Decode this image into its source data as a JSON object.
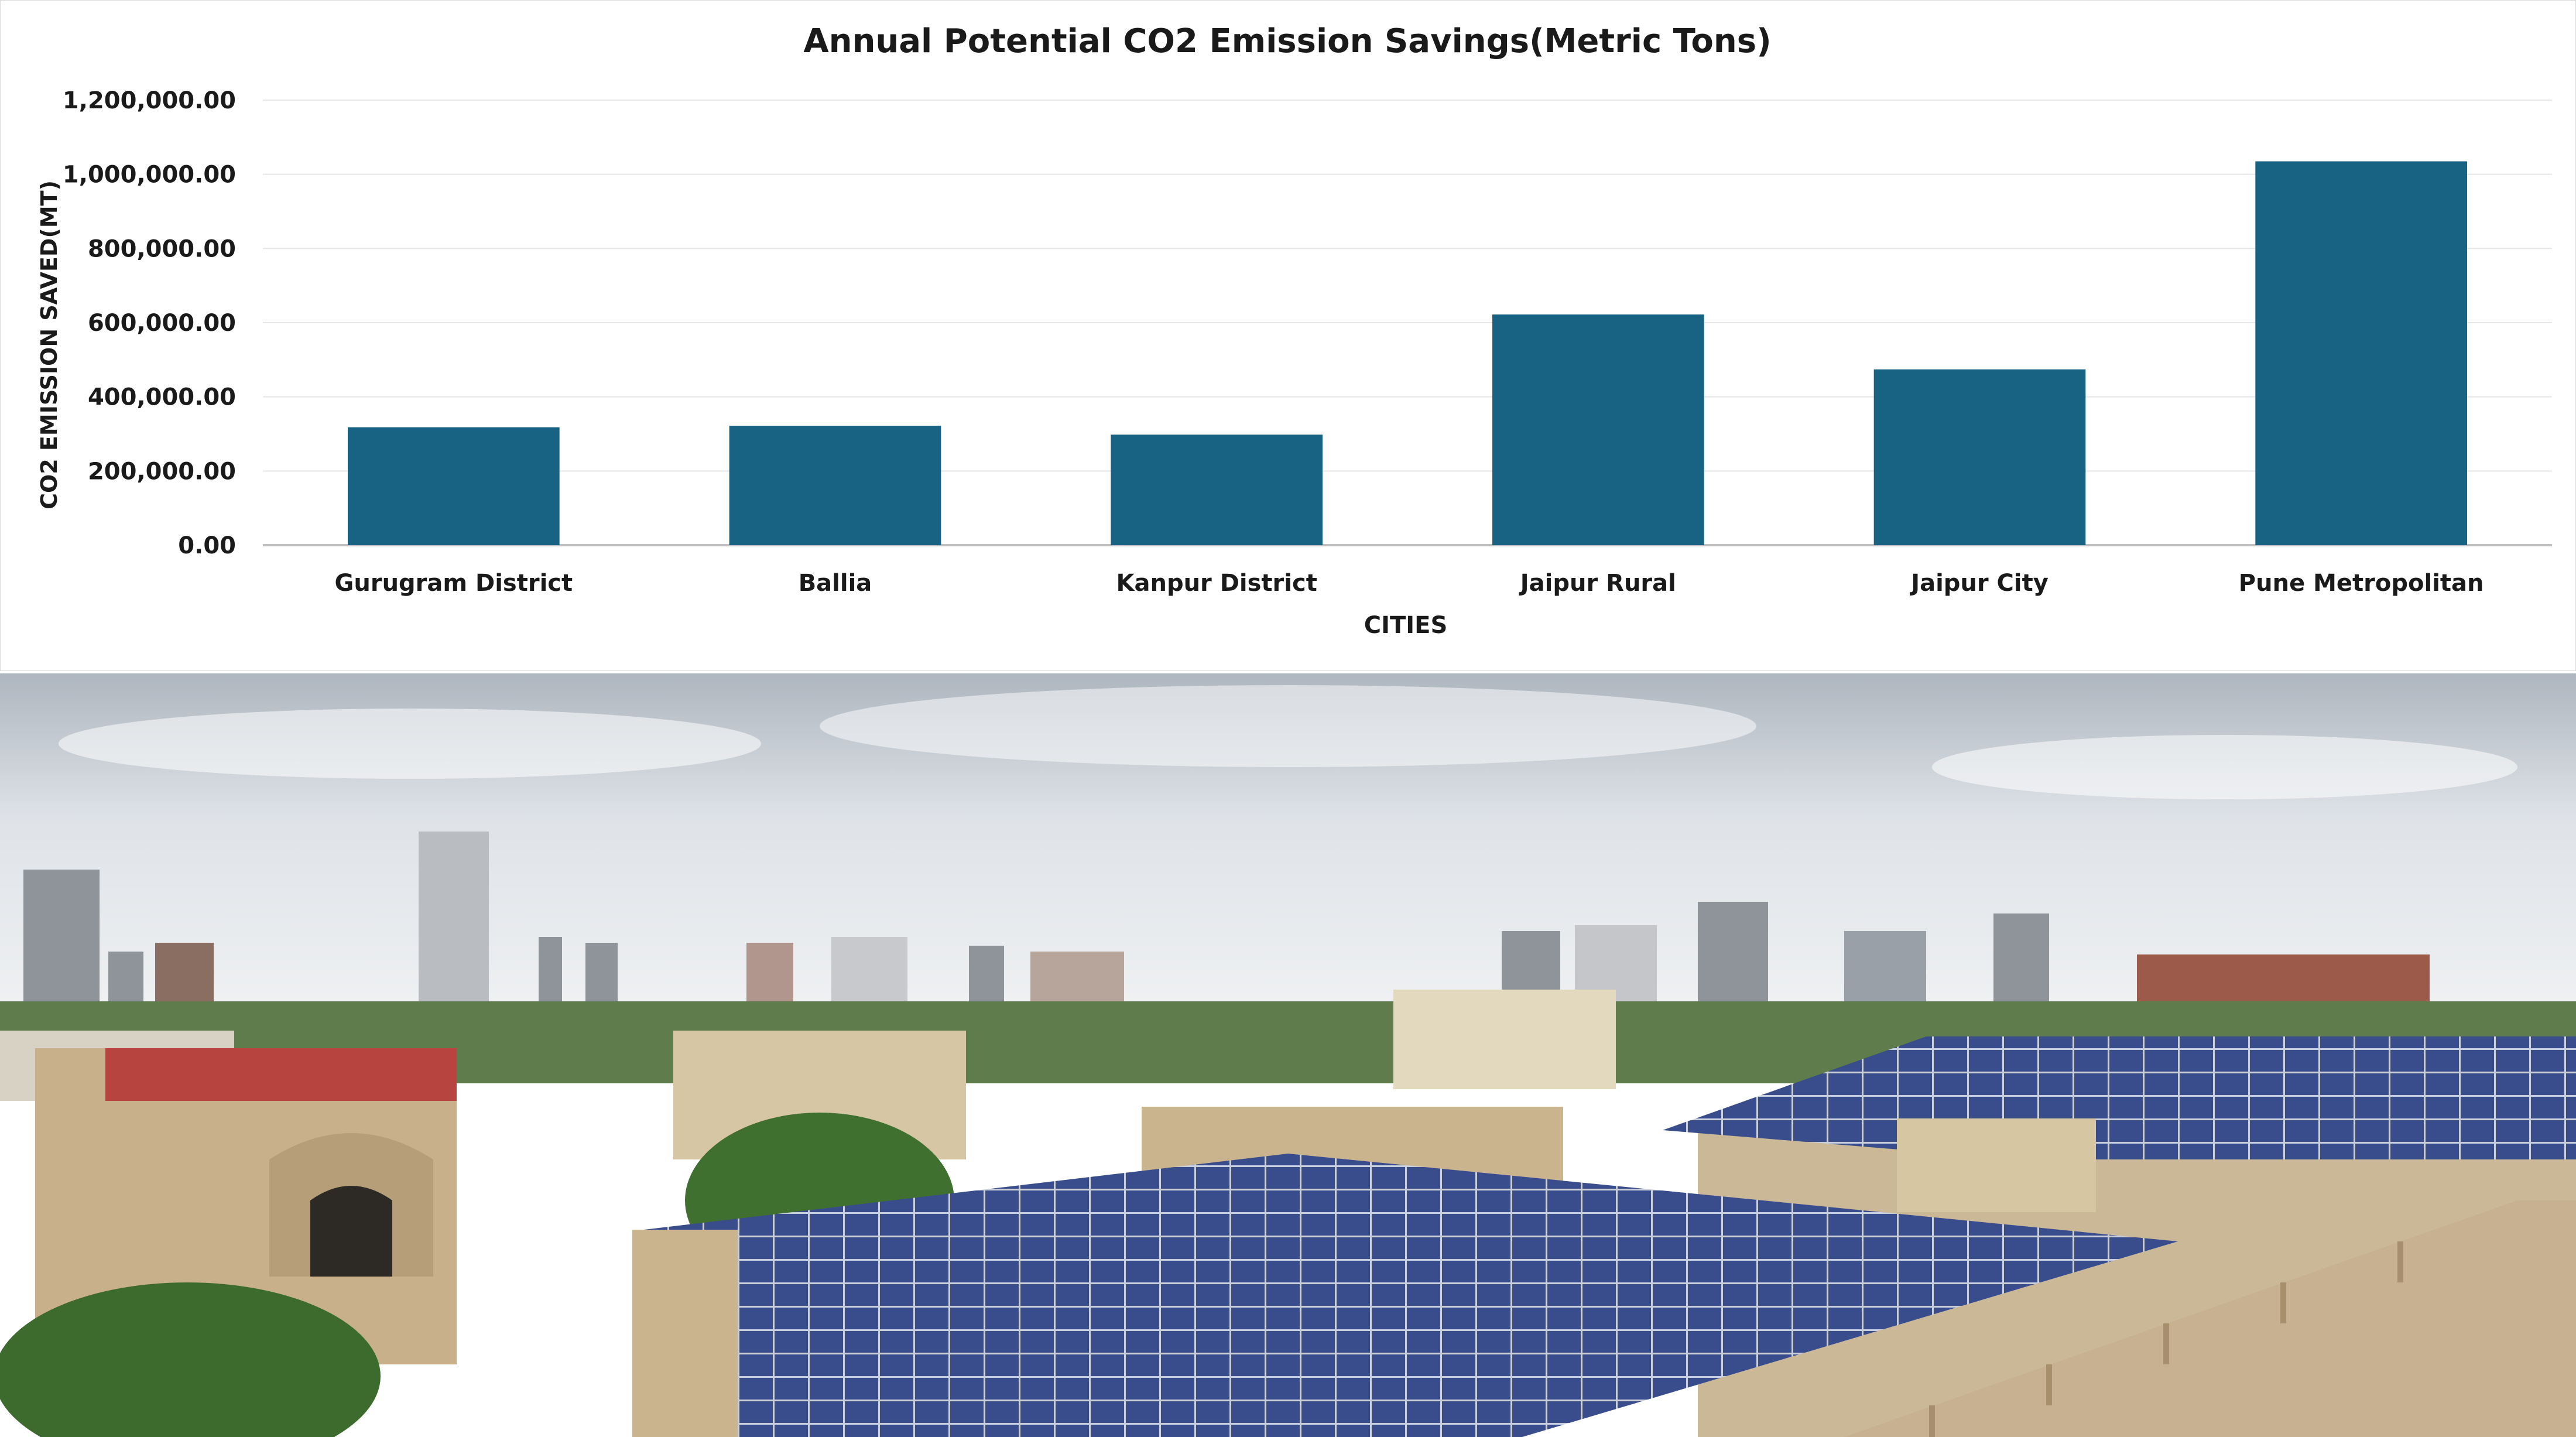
{
  "chart_data": {
    "type": "bar",
    "title": "Annual Potential CO2 Emission Savings(Metric Tons)",
    "xlabel": "CITIES",
    "ylabel": "CO2 EMISSION SAVED(MT)",
    "categories": [
      "Gurugram District",
      "Ballia",
      "Kanpur District",
      "Jaipur Rural",
      "Jaipur City",
      "Pune Metropolitan"
    ],
    "values": [
      318000,
      322000,
      298000,
      622000,
      474000,
      1035000
    ],
    "ylim": [
      0,
      1200000
    ],
    "yticks": [
      0,
      200000,
      400000,
      600000,
      800000,
      1000000,
      1200000
    ],
    "ytick_labels": [
      "0.00",
      "200,000.00",
      "400,000.00",
      "600,000.00",
      "800,000.00",
      "1,000,000.00",
      "1,200,000.00"
    ],
    "grid": true,
    "bar_color": "#186283"
  },
  "photo": {
    "subject": "rooftop-solar-panels-cityscape",
    "colors": {
      "sky": "#e9ecef",
      "panel": "#3b4f8f",
      "building": "#c9b48e",
      "tree": "#3d6b2e"
    }
  }
}
